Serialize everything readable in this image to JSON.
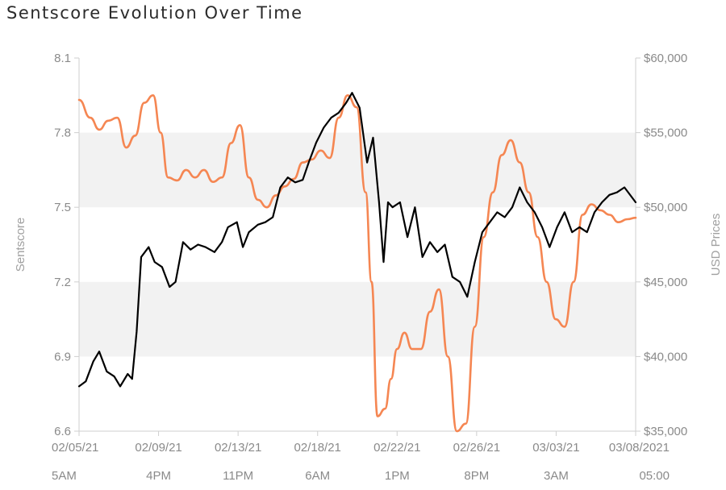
{
  "chart_data": {
    "type": "line",
    "title": "Sentscore Evolution Over Time",
    "ylabel_left": "Sentscore",
    "ylabel_right": "USD Prices",
    "ylim_left": [
      6.6,
      8.1
    ],
    "ylim_right": [
      35000,
      60000
    ],
    "y_ticks_left": [
      "8.1",
      "7.8",
      "7.5",
      "7.2",
      "6.9",
      "6.6"
    ],
    "y_ticks_right": [
      "$60,000",
      "$55,000",
      "$50,000",
      "$45,000",
      "$40,000",
      "$35,000"
    ],
    "x_ticks": [
      {
        "date": "02/05/21",
        "time": "5AM"
      },
      {
        "date": "02/09/21",
        "time": "4PM"
      },
      {
        "date": "02/13/21",
        "time": "11PM"
      },
      {
        "date": "02/18/21",
        "time": "6AM"
      },
      {
        "date": "02/22/21",
        "time": "1PM"
      },
      {
        "date": "02/26/21",
        "time": "8PM"
      },
      {
        "date": "03/03/21",
        "time": "3AM"
      },
      {
        "date": "03/08/2021",
        "time": "05:00"
      }
    ],
    "x_range": [
      "2021-02-05 05:00",
      "2021-03-08 05:00"
    ],
    "grid": "alternating horizontal bands",
    "series": [
      {
        "name": "",
        "axis": "left",
        "color": "#000000",
        "x": [
          "2021-02-05 05:00",
          "2021-02-05 14:00",
          "2021-02-06 00:00",
          "2021-02-06 08:00",
          "2021-02-06 18:00",
          "2021-02-07 04:00",
          "2021-02-07 12:00",
          "2021-02-07 22:00",
          "2021-02-08 04:00",
          "2021-02-08 10:00",
          "2021-02-08 16:00",
          "2021-02-09 02:00",
          "2021-02-09 10:00",
          "2021-02-09 20:00",
          "2021-02-10 06:00",
          "2021-02-10 14:00",
          "2021-02-11 00:00",
          "2021-02-11 10:00",
          "2021-02-11 20:00",
          "2021-02-12 06:00",
          "2021-02-12 18:00",
          "2021-02-13 04:00",
          "2021-02-13 12:00",
          "2021-02-14 00:00",
          "2021-02-14 08:00",
          "2021-02-14 16:00",
          "2021-02-15 04:00",
          "2021-02-15 14:00",
          "2021-02-16 00:00",
          "2021-02-16 10:00",
          "2021-02-16 20:00",
          "2021-02-17 06:00",
          "2021-02-17 16:00",
          "2021-02-18 00:00",
          "2021-02-18 10:00",
          "2021-02-18 20:00",
          "2021-02-19 06:00",
          "2021-02-19 16:00",
          "2021-02-20 02:00",
          "2021-02-20 10:00",
          "2021-02-20 20:00",
          "2021-02-21 06:00",
          "2021-02-21 14:00",
          "2021-02-21 22:00",
          "2021-02-22 04:00",
          "2021-02-22 10:00",
          "2021-02-22 16:00",
          "2021-02-23 02:00",
          "2021-02-23 12:00",
          "2021-02-23 22:00",
          "2021-02-24 08:00",
          "2021-02-24 18:00",
          "2021-02-25 04:00",
          "2021-02-25 14:00",
          "2021-02-26 00:00",
          "2021-02-26 10:00",
          "2021-02-26 20:00",
          "2021-02-27 06:00",
          "2021-02-27 16:00",
          "2021-02-28 02:00",
          "2021-02-28 12:00",
          "2021-02-28 22:00",
          "2021-03-01 08:00",
          "2021-03-01 18:00",
          "2021-03-02 04:00",
          "2021-03-02 14:00",
          "2021-03-03 00:00",
          "2021-03-03 10:00",
          "2021-03-03 20:00",
          "2021-03-04 06:00",
          "2021-03-04 16:00",
          "2021-03-05 02:00",
          "2021-03-05 12:00",
          "2021-03-05 22:00",
          "2021-03-06 08:00",
          "2021-03-06 18:00",
          "2021-03-07 04:00",
          "2021-03-07 14:00",
          "2021-03-08 00:00",
          "2021-03-08 05:00"
        ],
        "values": [
          6.78,
          6.8,
          6.88,
          6.92,
          6.84,
          6.82,
          6.78,
          6.83,
          6.81,
          7.0,
          7.3,
          7.34,
          7.28,
          7.26,
          7.18,
          7.2,
          7.36,
          7.33,
          7.35,
          7.34,
          7.32,
          7.36,
          7.42,
          7.44,
          7.34,
          7.4,
          7.43,
          7.44,
          7.46,
          7.58,
          7.62,
          7.6,
          7.61,
          7.68,
          7.76,
          7.82,
          7.86,
          7.88,
          7.92,
          7.96,
          7.9,
          7.68,
          7.78,
          7.52,
          7.28,
          7.52,
          7.5,
          7.52,
          7.38,
          7.5,
          7.3,
          7.36,
          7.32,
          7.35,
          7.22,
          7.2,
          7.14,
          7.28,
          7.4,
          7.44,
          7.48,
          7.46,
          7.5,
          7.58,
          7.52,
          7.48,
          7.42,
          7.34,
          7.42,
          7.48,
          7.4,
          7.42,
          7.4,
          7.48,
          7.52,
          7.55,
          7.56,
          7.58,
          7.54,
          7.52
        ]
      },
      {
        "name": "",
        "axis": "right",
        "color": "#f58652",
        "x": [
          "2021-02-05 05:00",
          "2021-02-05 20:00",
          "2021-02-06 08:00",
          "2021-02-06 20:00",
          "2021-02-07 08:00",
          "2021-02-07 20:00",
          "2021-02-08 08:00",
          "2021-02-08 20:00",
          "2021-02-09 08:00",
          "2021-02-09 18:00",
          "2021-02-10 04:00",
          "2021-02-10 16:00",
          "2021-02-11 04:00",
          "2021-02-11 16:00",
          "2021-02-12 04:00",
          "2021-02-12 16:00",
          "2021-02-13 04:00",
          "2021-02-13 16:00",
          "2021-02-14 04:00",
          "2021-02-14 16:00",
          "2021-02-15 04:00",
          "2021-02-15 16:00",
          "2021-02-16 04:00",
          "2021-02-16 16:00",
          "2021-02-17 04:00",
          "2021-02-17 16:00",
          "2021-02-18 04:00",
          "2021-02-18 16:00",
          "2021-02-19 04:00",
          "2021-02-19 16:00",
          "2021-02-20 04:00",
          "2021-02-20 16:00",
          "2021-02-21 04:00",
          "2021-02-21 12:00",
          "2021-02-21 20:00",
          "2021-02-22 06:00",
          "2021-02-22 14:00",
          "2021-02-22 22:00",
          "2021-02-23 08:00",
          "2021-02-23 18:00",
          "2021-02-24 06:00",
          "2021-02-24 18:00",
          "2021-02-25 06:00",
          "2021-02-25 18:00",
          "2021-02-26 06:00",
          "2021-02-26 18:00",
          "2021-02-27 06:00",
          "2021-02-27 18:00",
          "2021-02-28 06:00",
          "2021-02-28 18:00",
          "2021-03-01 06:00",
          "2021-03-01 18:00",
          "2021-03-02 06:00",
          "2021-03-02 18:00",
          "2021-03-03 06:00",
          "2021-03-03 18:00",
          "2021-03-04 06:00",
          "2021-03-04 18:00",
          "2021-03-05 06:00",
          "2021-03-05 18:00",
          "2021-03-06 06:00",
          "2021-03-06 18:00",
          "2021-03-07 06:00",
          "2021-03-07 18:00",
          "2021-03-08 05:00"
        ],
        "values": [
          57200,
          56000,
          55200,
          55800,
          56000,
          54000,
          54800,
          57000,
          57500,
          55000,
          52000,
          51800,
          52500,
          52000,
          52500,
          51700,
          52000,
          54300,
          55500,
          52000,
          50500,
          50000,
          50800,
          51400,
          51900,
          53000,
          53200,
          53800,
          53300,
          56000,
          57500,
          56700,
          51000,
          45000,
          36000,
          36500,
          38500,
          40500,
          41600,
          40500,
          40500,
          43000,
          44500,
          40000,
          35000,
          35500,
          42000,
          48000,
          51000,
          53500,
          54500,
          53000,
          51000,
          48000,
          45000,
          42500,
          42000,
          45000,
          49500,
          50200,
          49800,
          49500,
          49000,
          49200,
          49300
        ]
      }
    ]
  }
}
